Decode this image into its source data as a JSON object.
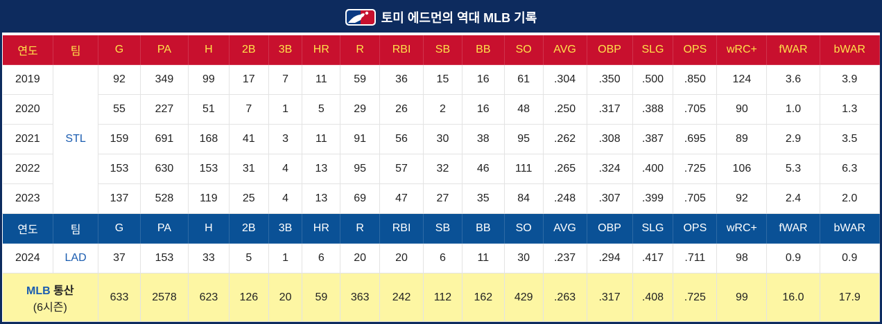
{
  "title": "토미 에드먼의 역대 MLB 기록",
  "logo_icon": "mlb-logo-icon",
  "colors": {
    "navy": "#0d2b5e",
    "red": "#c8102e",
    "blue": "#0a5196",
    "yellow": "#ffe24a",
    "total_bg": "#fdf6a3"
  },
  "headers": [
    "연도",
    "팀",
    "G",
    "PA",
    "H",
    "2B",
    "3B",
    "HR",
    "R",
    "RBI",
    "SB",
    "BB",
    "SO",
    "AVG",
    "OBP",
    "SLG",
    "OPS",
    "wRC+",
    "fWAR",
    "bWAR"
  ],
  "stl": {
    "team": "STL",
    "rows": [
      [
        "2019",
        "92",
        "349",
        "99",
        "17",
        "7",
        "11",
        "59",
        "36",
        "15",
        "16",
        "61",
        ".304",
        ".350",
        ".500",
        ".850",
        "124",
        "3.6",
        "3.9"
      ],
      [
        "2020",
        "55",
        "227",
        "51",
        "7",
        "1",
        "5",
        "29",
        "26",
        "2",
        "16",
        "48",
        ".250",
        ".317",
        ".388",
        ".705",
        "90",
        "1.0",
        "1.3"
      ],
      [
        "2021",
        "159",
        "691",
        "168",
        "41",
        "3",
        "11",
        "91",
        "56",
        "30",
        "38",
        "95",
        ".262",
        ".308",
        ".387",
        ".695",
        "89",
        "2.9",
        "3.5"
      ],
      [
        "2022",
        "153",
        "630",
        "153",
        "31",
        "4",
        "13",
        "95",
        "57",
        "32",
        "46",
        "111",
        ".265",
        ".324",
        ".400",
        ".725",
        "106",
        "5.3",
        "6.3"
      ],
      [
        "2023",
        "137",
        "528",
        "119",
        "25",
        "4",
        "13",
        "69",
        "47",
        "27",
        "35",
        "84",
        ".248",
        ".307",
        ".399",
        ".705",
        "92",
        "2.4",
        "2.0"
      ]
    ]
  },
  "lad": {
    "team": "LAD",
    "rows": [
      [
        "2024",
        "37",
        "153",
        "33",
        "5",
        "1",
        "6",
        "20",
        "20",
        "6",
        "11",
        "30",
        ".237",
        ".294",
        ".417",
        ".711",
        "98",
        "0.9",
        "0.9"
      ]
    ]
  },
  "total": {
    "label_mlb": "MLB",
    "label_word": "통산",
    "label_sub": "(6시즌)",
    "values": [
      "633",
      "2578",
      "623",
      "126",
      "20",
      "59",
      "363",
      "242",
      "112",
      "162",
      "429",
      ".263",
      ".317",
      ".408",
      ".725",
      "99",
      "16.0",
      "17.9"
    ]
  }
}
